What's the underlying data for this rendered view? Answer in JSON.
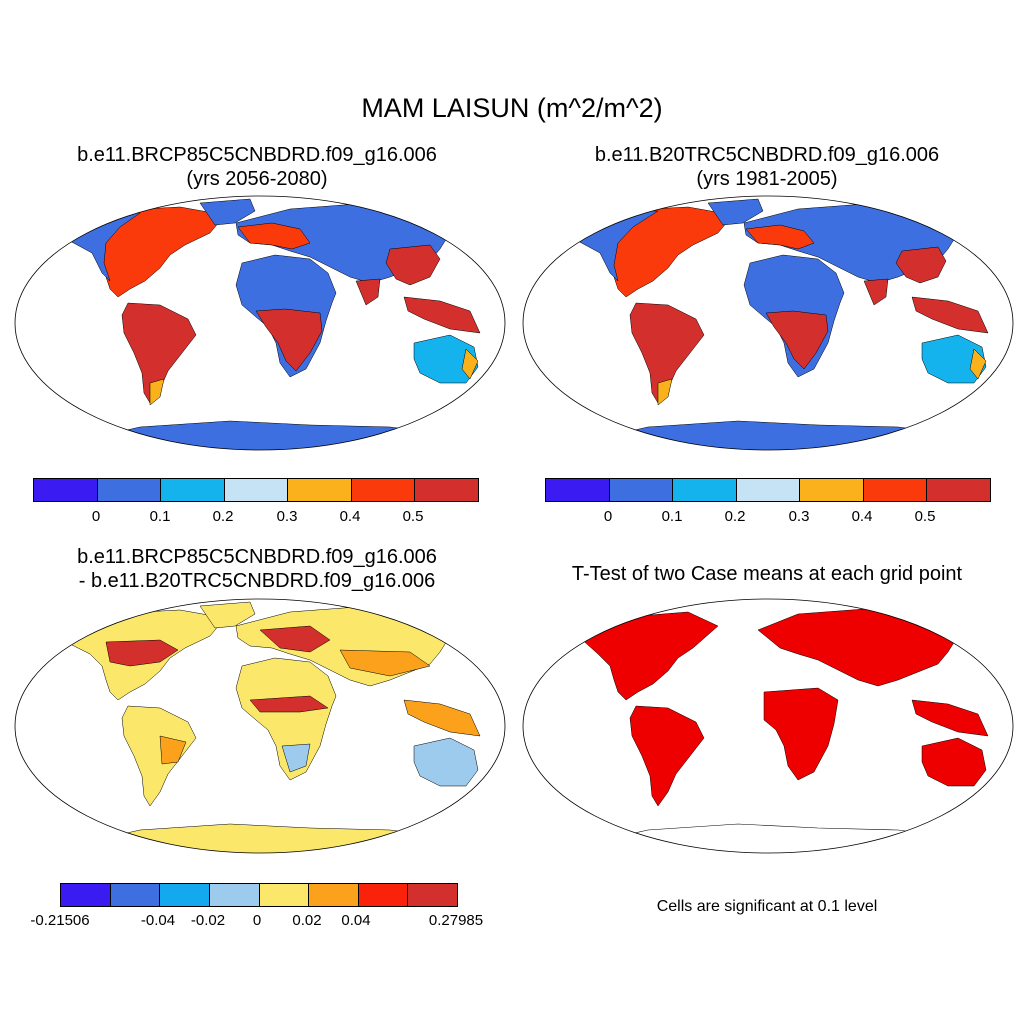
{
  "main_title": "MAM LAISUN (m^2/m^2)",
  "panels": [
    {
      "title_line1": "b.e11.BRCP85C5CNBDRD.f09_g16.006",
      "title_line2": "(yrs 2056-2080)"
    },
    {
      "title_line1": "b.e11.B20TRC5CNBDRD.f09_g16.006",
      "title_line2": "(yrs 1981-2005)"
    },
    {
      "title_line1": "b.e11.BRCP85C5CNBDRD.f09_g16.006",
      "title_line2": "- b.e11.B20TRC5CNBDRD.f09_g16.006"
    },
    {
      "title_line1": "T-Test of two Case means at each grid point"
    }
  ],
  "colorbar_abs": {
    "colors": [
      "#3a1cf2",
      "#3d6fe0",
      "#14b3ee",
      "#c6e3f5",
      "#fbb11c",
      "#fb3a0c",
      "#d3302d"
    ],
    "labels": [
      "0",
      "0.1",
      "0.2",
      "0.3",
      "0.4",
      "0.5"
    ]
  },
  "colorbar_diff": {
    "colors": [
      "#3a1cf2",
      "#3d6fe0",
      "#14a9ef",
      "#9ccbee",
      "#fbe86a",
      "#fba11c",
      "#fb220c",
      "#d3302d"
    ],
    "labels": [
      "-0.21506",
      "-0.04",
      "-0.02",
      "0",
      "0.02",
      "0.04",
      "0.27985"
    ]
  },
  "significance_note": "Cells are significant at 0.1 level",
  "map_colors": {
    "ocean": "#ffffff",
    "abs_desert": "#3d6fe0",
    "abs_tropics": "#d3302d",
    "abs_mid": "#fb3a0c",
    "abs_orange": "#fbb11c",
    "abs_light": "#14b3ee",
    "diff_base": "#fbe86a",
    "diff_pos": "#d3302d",
    "diff_orange": "#fba11c",
    "diff_neg": "#9ccbee",
    "sig": "#ee0000"
  }
}
